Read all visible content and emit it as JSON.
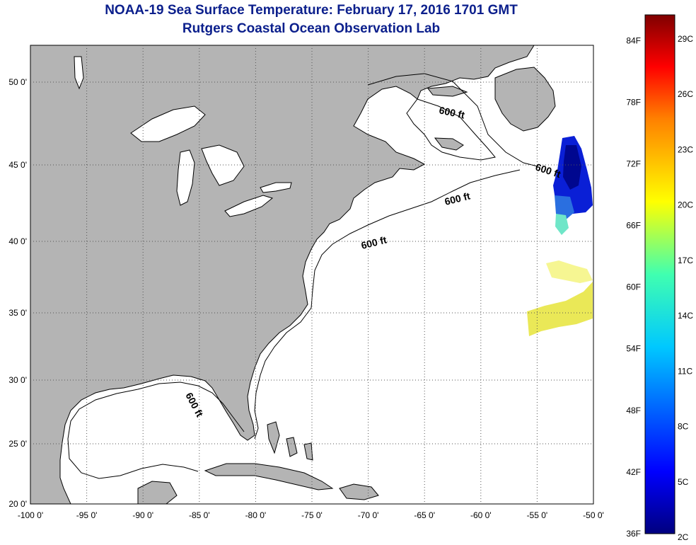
{
  "title": "NOAA-19 Sea Surface Temperature:  February 17, 2016 1701 GMT",
  "subtitle": "Rutgers Coastal Ocean Observation Lab",
  "x_ticks": [
    {
      "lon": -100,
      "label": "-100 0'"
    },
    {
      "lon": -95,
      "label": "-95 0'"
    },
    {
      "lon": -90,
      "label": "-90 0'"
    },
    {
      "lon": -85,
      "label": "-85 0'"
    },
    {
      "lon": -80,
      "label": "-80 0'"
    },
    {
      "lon": -75,
      "label": "-75 0'"
    },
    {
      "lon": -70,
      "label": "-70 0'"
    },
    {
      "lon": -65,
      "label": "-65 0'"
    },
    {
      "lon": -60,
      "label": "-60 0'"
    },
    {
      "lon": -55,
      "label": "-55 0'"
    },
    {
      "lon": -50,
      "label": "-50 0'"
    }
  ],
  "y_ticks": [
    {
      "lat": 50,
      "label": "50 0'"
    },
    {
      "lat": 45,
      "label": "45 0'"
    },
    {
      "lat": 40,
      "label": "40 0'"
    },
    {
      "lat": 35,
      "label": "35 0'"
    },
    {
      "lat": 30,
      "label": "30 0'"
    },
    {
      "lat": 25,
      "label": "25 0'"
    },
    {
      "lat": 20,
      "label": "20 0'"
    }
  ],
  "contour_labels": [
    "600 ft",
    "600 ft",
    "600 ft",
    "600 ft",
    "600 ft"
  ],
  "colorbar": {
    "fahrenheit": [
      {
        "value": 84,
        "label": "84F"
      },
      {
        "value": 78,
        "label": "78F"
      },
      {
        "value": 72,
        "label": "72F"
      },
      {
        "value": 66,
        "label": "66F"
      },
      {
        "value": 60,
        "label": "60F"
      },
      {
        "value": 54,
        "label": "54F"
      },
      {
        "value": 48,
        "label": "48F"
      },
      {
        "value": 42,
        "label": "42F"
      },
      {
        "value": 36,
        "label": "36F"
      }
    ],
    "celsius": [
      {
        "value": 29,
        "label": "29C"
      },
      {
        "value": 26,
        "label": "26C"
      },
      {
        "value": 23,
        "label": "23C"
      },
      {
        "value": 20,
        "label": "20C"
      },
      {
        "value": 17,
        "label": "17C"
      },
      {
        "value": 14,
        "label": "14C"
      },
      {
        "value": 11,
        "label": "11C"
      },
      {
        "value": 8,
        "label": "8C"
      },
      {
        "value": 5,
        "label": "5C"
      },
      {
        "value": 2,
        "label": "2C"
      }
    ],
    "colors": [
      "#00007f",
      "#0000ff",
      "#007fff",
      "#00ffff",
      "#7fff7f",
      "#ffff00",
      "#ff7f00",
      "#ff0000",
      "#7f0000"
    ]
  },
  "colors": {
    "land": "#b4b4b4",
    "ocean": "#ffffff",
    "title": "#0b1f8c",
    "grid": "#555555"
  }
}
